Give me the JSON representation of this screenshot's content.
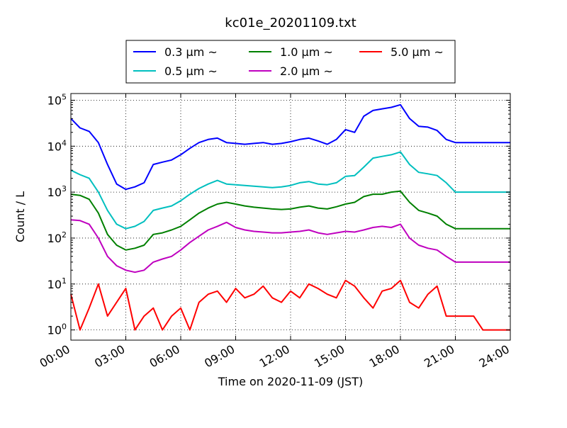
{
  "chart_data": {
    "type": "line",
    "title": "kc01e_20201109.txt",
    "xlabel": "Time on 2020-11-09 (JST)",
    "ylabel": "Count / L",
    "yscale": "log",
    "ylim": [
      0.6,
      140000
    ],
    "xlim": [
      0,
      24
    ],
    "grid": true,
    "legend_position": "top-center",
    "x_ticks": [
      "00:00",
      "03:00",
      "06:00",
      "09:00",
      "12:00",
      "15:00",
      "18:00",
      "21:00",
      "24:00"
    ],
    "y_ticks": [
      {
        "base": "10",
        "exp": "0"
      },
      {
        "base": "10",
        "exp": "1"
      },
      {
        "base": "10",
        "exp": "2"
      },
      {
        "base": "10",
        "exp": "3"
      },
      {
        "base": "10",
        "exp": "4"
      },
      {
        "base": "10",
        "exp": "5"
      }
    ],
    "x": [
      0,
      0.5,
      1,
      1.5,
      2,
      2.5,
      3,
      3.5,
      4,
      4.5,
      5,
      5.5,
      6,
      6.5,
      7,
      7.5,
      8,
      8.5,
      9,
      9.5,
      10,
      10.5,
      11,
      11.5,
      12,
      12.5,
      13,
      13.5,
      14,
      14.5,
      15,
      15.5,
      16,
      16.5,
      17,
      17.5,
      18,
      18.5,
      19,
      19.5,
      20,
      20.5,
      21,
      21.5,
      22,
      22.5,
      23,
      23.5,
      24
    ],
    "series": [
      {
        "name": "0.3 µm ~",
        "color": "#0000ff",
        "values": [
          40000,
          25000,
          21000,
          12000,
          4000,
          1500,
          1150,
          1300,
          1600,
          4000,
          4500,
          5000,
          6500,
          9000,
          12000,
          14000,
          15000,
          12000,
          11500,
          11000,
          11500,
          12000,
          11000,
          11500,
          12500,
          14000,
          15000,
          13000,
          11000,
          14000,
          23000,
          20000,
          45000,
          60000,
          65000,
          70000,
          80000,
          40000,
          27000,
          26000,
          22000,
          14000,
          12000,
          12000,
          12000,
          12000,
          12000,
          12000,
          12000
        ]
      },
      {
        "name": "0.5 µm ~",
        "color": "#00bfbf",
        "values": [
          3000,
          2400,
          2000,
          1000,
          400,
          200,
          160,
          180,
          230,
          400,
          450,
          500,
          650,
          900,
          1200,
          1500,
          1800,
          1500,
          1450,
          1400,
          1350,
          1300,
          1250,
          1300,
          1400,
          1600,
          1700,
          1500,
          1450,
          1600,
          2200,
          2300,
          3500,
          5500,
          6000,
          6500,
          7500,
          4000,
          2700,
          2500,
          2300,
          1600,
          1000,
          1000,
          1000,
          1000,
          1000,
          1000,
          1000
        ]
      },
      {
        "name": "1.0 µm ~",
        "color": "#008000",
        "values": [
          900,
          850,
          700,
          350,
          120,
          70,
          55,
          60,
          70,
          120,
          130,
          150,
          180,
          250,
          350,
          450,
          550,
          600,
          550,
          500,
          470,
          450,
          430,
          420,
          430,
          470,
          500,
          450,
          430,
          480,
          550,
          600,
          800,
          900,
          900,
          1000,
          1050,
          600,
          400,
          350,
          300,
          200,
          160,
          160,
          160,
          160,
          160,
          160,
          160
        ]
      },
      {
        "name": "2.0 µm ~",
        "color": "#bf00bf",
        "values": [
          250,
          240,
          200,
          100,
          40,
          25,
          20,
          18,
          20,
          30,
          35,
          40,
          55,
          80,
          110,
          150,
          180,
          220,
          170,
          150,
          140,
          135,
          130,
          130,
          135,
          140,
          150,
          130,
          120,
          130,
          140,
          135,
          150,
          170,
          180,
          170,
          200,
          100,
          70,
          60,
          55,
          40,
          30,
          30,
          30,
          30,
          30,
          30,
          30
        ]
      },
      {
        "name": "5.0 µm ~",
        "color": "#ff0000",
        "values": [
          6,
          1,
          3,
          10,
          2,
          4,
          8,
          1,
          2,
          3,
          1,
          2,
          3,
          1,
          4,
          6,
          7,
          4,
          8,
          5,
          6,
          9,
          5,
          4,
          7,
          5,
          10,
          8,
          6,
          5,
          12,
          9,
          5,
          3,
          7,
          8,
          12,
          4,
          3,
          6,
          9,
          2,
          2,
          2,
          2,
          1,
          1,
          1,
          1
        ]
      }
    ],
    "legend": [
      {
        "label": "0.3 μm ~",
        "color": "#0000ff"
      },
      {
        "label": "1.0 μm ~",
        "color": "#008000"
      },
      {
        "label": "5.0 μm ~",
        "color": "#ff0000"
      },
      {
        "label": "0.5 μm ~",
        "color": "#00bfbf"
      },
      {
        "label": "2.0 μm ~",
        "color": "#bf00bf"
      }
    ]
  }
}
